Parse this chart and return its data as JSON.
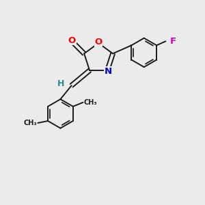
{
  "background_color": "#ebebeb",
  "bond_color": "#1a1a1a",
  "atom_colors": {
    "O": "#ff0000",
    "N": "#0000cd",
    "F": "#cc00cc",
    "H": "#2e8b8b",
    "C": "#1a1a1a"
  },
  "figsize": [
    3.0,
    3.0
  ],
  "dpi": 100,
  "lw": 1.4
}
